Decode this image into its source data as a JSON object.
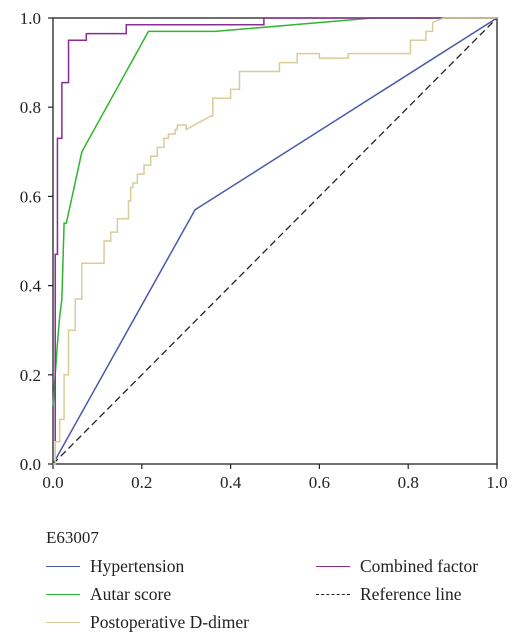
{
  "chart_data": {
    "type": "line",
    "title": "",
    "xlabel": "",
    "ylabel": "",
    "xlim": [
      0,
      1
    ],
    "ylim": [
      0,
      1
    ],
    "x_ticks": [
      "0.0",
      "0.2",
      "0.4",
      "0.6",
      "0.8",
      "1.0"
    ],
    "y_ticks": [
      "0.0",
      "0.2",
      "0.4",
      "0.6",
      "0.8",
      "1.0"
    ],
    "grid": false,
    "legend_placement": "bottom",
    "legend_title": "E63007",
    "series": [
      {
        "name": "Hypertension",
        "color": "#4a5aa8",
        "dash": "solid",
        "x": [
          0.0,
          0.32,
          1.0
        ],
        "y": [
          0.0,
          0.57,
          1.0
        ]
      },
      {
        "name": "Autar score",
        "color": "#2fb52f",
        "dash": "solid",
        "x": [
          0.0,
          0.005,
          0.01,
          0.015,
          0.02,
          0.025,
          0.03,
          0.065,
          0.215,
          0.365,
          0.72,
          1.0
        ],
        "y": [
          0.13,
          0.2,
          0.27,
          0.33,
          0.37,
          0.54,
          0.54,
          0.7,
          0.97,
          0.97,
          1.0,
          1.0
        ]
      },
      {
        "name": "Combined factor",
        "color": "#8a2c93",
        "dash": "step",
        "x": [
          0.0,
          0.005,
          0.005,
          0.01,
          0.01,
          0.02,
          0.02,
          0.035,
          0.035,
          0.075,
          0.075,
          0.165,
          0.165,
          0.475,
          0.475,
          1.0
        ],
        "y": [
          0.0,
          0.0,
          0.47,
          0.47,
          0.73,
          0.73,
          0.855,
          0.855,
          0.95,
          0.95,
          0.965,
          0.965,
          0.985,
          0.985,
          1.0,
          1.0
        ]
      },
      {
        "name": "Reference line",
        "color": "#222222",
        "dash": "dashed",
        "x": [
          0.0,
          1.0
        ],
        "y": [
          0.0,
          1.0
        ]
      },
      {
        "name": "Postoperative D-dimer",
        "color": "#d8cc9a",
        "dash": "step",
        "x": [
          0.0,
          0.005,
          0.005,
          0.015,
          0.015,
          0.025,
          0.025,
          0.035,
          0.035,
          0.05,
          0.05,
          0.065,
          0.065,
          0.115,
          0.115,
          0.13,
          0.13,
          0.145,
          0.145,
          0.17,
          0.17,
          0.175,
          0.175,
          0.18,
          0.18,
          0.19,
          0.19,
          0.205,
          0.205,
          0.22,
          0.22,
          0.235,
          0.235,
          0.25,
          0.25,
          0.26,
          0.26,
          0.275,
          0.275,
          0.28,
          0.28,
          0.3,
          0.3,
          0.3,
          0.355,
          0.36,
          0.36,
          0.4,
          0.4,
          0.42,
          0.42,
          0.51,
          0.51,
          0.55,
          0.55,
          0.6,
          0.6,
          0.665,
          0.665,
          0.805,
          0.805,
          0.84,
          0.84,
          0.855,
          0.855,
          0.88,
          1.0
        ],
        "y": [
          0.0,
          0.0,
          0.05,
          0.05,
          0.1,
          0.1,
          0.2,
          0.2,
          0.3,
          0.3,
          0.37,
          0.37,
          0.45,
          0.45,
          0.5,
          0.5,
          0.52,
          0.52,
          0.55,
          0.55,
          0.59,
          0.59,
          0.62,
          0.62,
          0.63,
          0.63,
          0.65,
          0.65,
          0.67,
          0.67,
          0.69,
          0.69,
          0.71,
          0.71,
          0.73,
          0.73,
          0.74,
          0.74,
          0.75,
          0.75,
          0.76,
          0.76,
          0.75,
          0.75,
          0.78,
          0.78,
          0.82,
          0.82,
          0.84,
          0.84,
          0.88,
          0.88,
          0.9,
          0.9,
          0.92,
          0.92,
          0.91,
          0.91,
          0.92,
          0.92,
          0.95,
          0.95,
          0.97,
          0.97,
          0.99,
          1.0,
          1.0
        ]
      }
    ]
  }
}
